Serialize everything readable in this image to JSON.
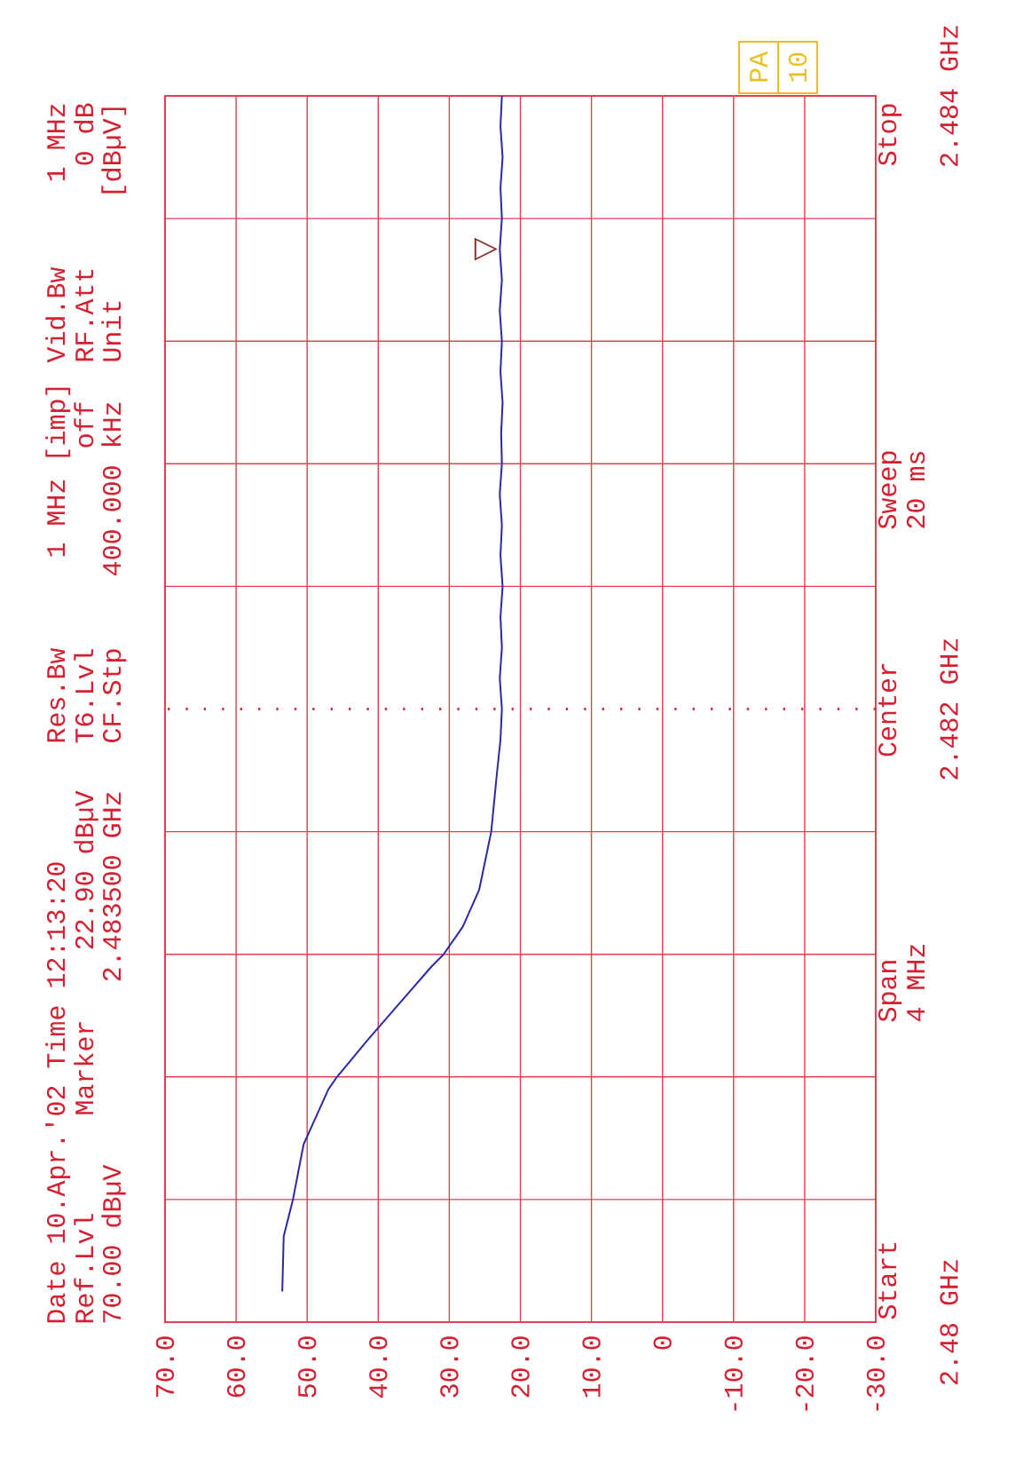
{
  "chart_data": {
    "type": "line",
    "orientation": "horizontal",
    "ylim": [
      2.48,
      2.484
    ],
    "yticks": [
      {
        "value": 2.48,
        "label": "2.48 GHz"
      },
      {
        "value": 2.4804,
        "label": null
      },
      {
        "value": 2.4808,
        "label": null
      },
      {
        "value": 2.4812,
        "label": null
      },
      {
        "value": 2.4816,
        "label": null
      },
      {
        "value": 2.482,
        "label": "2.482 GHz"
      },
      {
        "value": 2.4824,
        "label": null
      },
      {
        "value": 2.4828,
        "label": null
      },
      {
        "value": 2.4832,
        "label": null
      },
      {
        "value": 2.4836,
        "label": null
      },
      {
        "value": 2.484,
        "label": "2.484 GHz"
      }
    ],
    "xlim": [
      70,
      -30
    ],
    "xticks": [
      {
        "value": 70,
        "label": "70.0"
      },
      {
        "value": 60,
        "label": "60.0"
      },
      {
        "value": 50,
        "label": "50.0"
      },
      {
        "value": 40,
        "label": "40.0"
      },
      {
        "value": 30,
        "label": "30.0"
      },
      {
        "value": 20,
        "label": "20.0"
      },
      {
        "value": 10,
        "label": "10.0"
      },
      {
        "value": 0,
        "label": "0"
      },
      {
        "value": -10,
        "label": "-10.0"
      },
      {
        "value": -20,
        "label": "-20.0"
      },
      {
        "value": -30,
        "label": "-30.0"
      }
    ],
    "grid": true,
    "ref_lines": [
      {
        "axis": "y",
        "value": 2.482,
        "color": "#e03040",
        "line_style": "dotted"
      }
    ],
    "series": [
      {
        "color": "#2a2aa8",
        "line_style": "solid",
        "x": [
          2.4801,
          2.48028,
          2.4804,
          2.48058,
          2.48076,
          2.4808,
          2.48092,
          2.48104,
          2.48116,
          2.4812,
          2.48129,
          2.48141,
          2.4816,
          2.48179,
          2.4819,
          2.482,
          2.4821,
          2.4822,
          2.4823,
          2.4824,
          2.4825,
          2.4826,
          2.4827,
          2.4828,
          2.4829,
          2.483,
          2.4831,
          2.4832,
          2.4833,
          2.4834,
          2.4835,
          2.4836,
          2.4837,
          2.4838,
          2.4839,
          2.484
        ],
        "values": [
          53.5,
          53.3,
          52.0,
          50.5,
          47.0,
          45.8,
          41.5,
          37.0,
          32.5,
          30.8,
          28.1,
          25.8,
          24.1,
          23.3,
          22.8,
          22.6,
          22.9,
          22.6,
          22.8,
          22.5,
          22.8,
          22.6,
          22.9,
          22.6,
          22.7,
          22.5,
          22.8,
          22.6,
          22.9,
          22.6,
          22.9,
          22.6,
          22.8,
          22.5,
          22.8,
          22.6
        ]
      }
    ],
    "annotations": [
      "Date 10.Apr.'02  Time 12:13:20",
      "Res.Bw",
      "1 MHz [imp]",
      "Vid.Bw",
      "1 MHz",
      "Ref.Lvl",
      "Marker",
      "22.90 dBµV",
      "T6.Lvl",
      "off",
      "RF.Att",
      "0 dB",
      "70.00 dBµV",
      "2.483500 GHz",
      "CF.Stp",
      "400.000 kHz",
      "Unit",
      "[dBµV]",
      "Start",
      "Span",
      "4 MHz",
      "Center",
      "Sweep",
      "20 ms",
      "Stop",
      "PA",
      "10",
      {
        "text": "▽",
        "x": 22.9,
        "y": 2.4835
      }
    ]
  }
}
